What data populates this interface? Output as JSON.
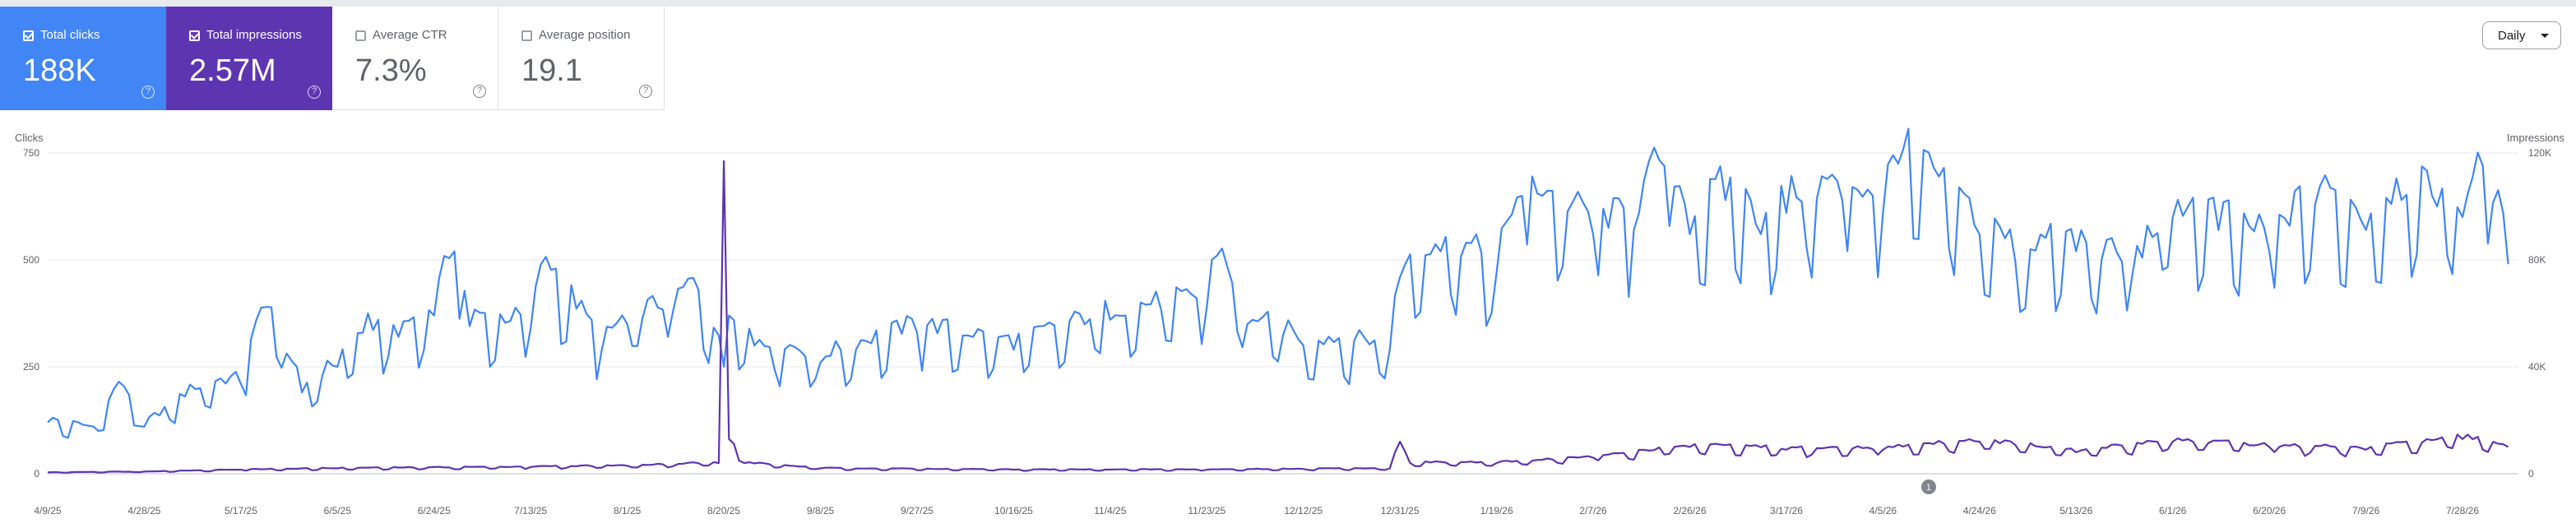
{
  "metrics": [
    {
      "label": "Total clicks",
      "value": "188K",
      "checked": true,
      "color": "#4285f4"
    },
    {
      "label": "Total impressions",
      "value": "2.57M",
      "checked": true,
      "color": "#5e35b1"
    },
    {
      "label": "Average CTR",
      "value": "7.3%",
      "checked": false
    },
    {
      "label": "Average position",
      "value": "19.1",
      "checked": false
    }
  ],
  "help_glyph": "?",
  "period": {
    "label": "Daily"
  },
  "annotation": {
    "label": "1",
    "date": "4/14/26"
  },
  "colors": {
    "clicks": "#4285f4",
    "impressions": "#5e35b1",
    "grid": "#e8eaed",
    "annotation": "#80868b"
  },
  "chart_data": {
    "type": "line",
    "left_axis": {
      "title": "Clicks",
      "ticks": [
        "0",
        "250",
        "500",
        "750"
      ],
      "range": [
        0,
        750
      ]
    },
    "right_axis": {
      "title": "Impressions",
      "ticks": [
        "0",
        "40K",
        "80K",
        "120K"
      ],
      "range": [
        0,
        120000
      ]
    },
    "x_range": [
      "4/9/25",
      "8/8/26"
    ],
    "x_tick_labels": [
      "4/9/25",
      "4/28/25",
      "5/17/25",
      "6/5/25",
      "6/24/25",
      "7/13/25",
      "8/1/25",
      "8/20/25",
      "9/8/25",
      "9/27/25",
      "10/16/25",
      "11/4/25",
      "11/23/25",
      "12/12/25",
      "12/31/25",
      "1/19/26",
      "2/7/26",
      "2/26/26",
      "3/17/26",
      "4/5/26",
      "4/24/26",
      "5/13/26",
      "6/1/26",
      "6/20/26",
      "7/9/26",
      "7/28/26"
    ],
    "grid": true,
    "series": [
      {
        "name": "Clicks",
        "axis": "left",
        "keypoints": [
          [
            "4/9/25",
            120
          ],
          [
            "4/19/25",
            100
          ],
          [
            "4/23/25",
            215
          ],
          [
            "4/28/25",
            110
          ],
          [
            "5/9/25",
            200
          ],
          [
            "5/17/25",
            210
          ],
          [
            "5/22/25",
            390
          ],
          [
            "5/29/25",
            190
          ],
          [
            "6/5/25",
            250
          ],
          [
            "6/10/25",
            330
          ],
          [
            "6/17/25",
            320
          ],
          [
            "6/24/25",
            370
          ],
          [
            "6/28/25",
            520
          ],
          [
            "7/1/25",
            345
          ],
          [
            "7/13/25",
            340
          ],
          [
            "7/15/25",
            490
          ],
          [
            "7/27/25",
            290
          ],
          [
            "8/1/25",
            350
          ],
          [
            "8/10/25",
            380
          ],
          [
            "8/15/25",
            430
          ],
          [
            "8/20/25",
            250
          ],
          [
            "8/21/25",
            370
          ],
          [
            "8/26/25",
            300
          ],
          [
            "9/8/25",
            260
          ],
          [
            "9/27/25",
            330
          ],
          [
            "10/16/25",
            290
          ],
          [
            "11/4/25",
            360
          ],
          [
            "11/23/25",
            390
          ],
          [
            "11/25/25",
            510
          ],
          [
            "12/1/25",
            350
          ],
          [
            "12/12/25",
            300
          ],
          [
            "12/29/25",
            290
          ],
          [
            "12/31/25",
            460
          ],
          [
            "1/8/26",
            520
          ],
          [
            "1/19/26",
            470
          ],
          [
            "1/24/26",
            650
          ],
          [
            "2/7/26",
            560
          ],
          [
            "2/15/26",
            570
          ],
          [
            "2/21/26",
            720
          ],
          [
            "2/26/26",
            560
          ],
          [
            "3/5/26",
            640
          ],
          [
            "3/12/26",
            560
          ],
          [
            "3/17/26",
            610
          ],
          [
            "3/28/26",
            640
          ],
          [
            "4/5/26",
            610
          ],
          [
            "4/8/26",
            725
          ],
          [
            "4/24/26",
            560
          ],
          [
            "5/1/26",
            500
          ],
          [
            "5/13/26",
            520
          ],
          [
            "5/24/26",
            460
          ],
          [
            "6/1/26",
            600
          ],
          [
            "6/10/26",
            570
          ],
          [
            "6/20/26",
            520
          ],
          [
            "6/29/26",
            630
          ],
          [
            "7/9/26",
            570
          ],
          [
            "7/16/26",
            640
          ],
          [
            "7/28/26",
            600
          ],
          [
            "8/1/26",
            720
          ],
          [
            "8/6/26",
            490
          ]
        ]
      },
      {
        "name": "Impressions",
        "axis": "right",
        "keypoints": [
          [
            "4/9/25",
            500
          ],
          [
            "4/28/25",
            800
          ],
          [
            "5/17/25",
            1500
          ],
          [
            "6/5/25",
            2000
          ],
          [
            "7/13/25",
            2500
          ],
          [
            "8/1/25",
            3000
          ],
          [
            "8/19/25",
            4000
          ],
          [
            "8/20/25",
            117000
          ],
          [
            "8/21/25",
            13000
          ],
          [
            "8/24/25",
            4000
          ],
          [
            "9/8/25",
            2000
          ],
          [
            "10/16/25",
            1500
          ],
          [
            "11/23/25",
            1500
          ],
          [
            "12/29/25",
            2000
          ],
          [
            "12/31/25",
            12000
          ],
          [
            "1/2/26",
            4000
          ],
          [
            "1/19/26",
            4000
          ],
          [
            "2/7/26",
            6000
          ],
          [
            "2/26/26",
            10000
          ],
          [
            "3/17/26",
            9000
          ],
          [
            "4/5/26",
            9000
          ],
          [
            "4/24/26",
            12000
          ],
          [
            "5/13/26",
            8000
          ],
          [
            "6/1/26",
            12000
          ],
          [
            "6/20/26",
            10000
          ],
          [
            "7/9/26",
            9000
          ],
          [
            "7/28/26",
            13000
          ],
          [
            "8/6/26",
            10000
          ]
        ]
      }
    ]
  }
}
